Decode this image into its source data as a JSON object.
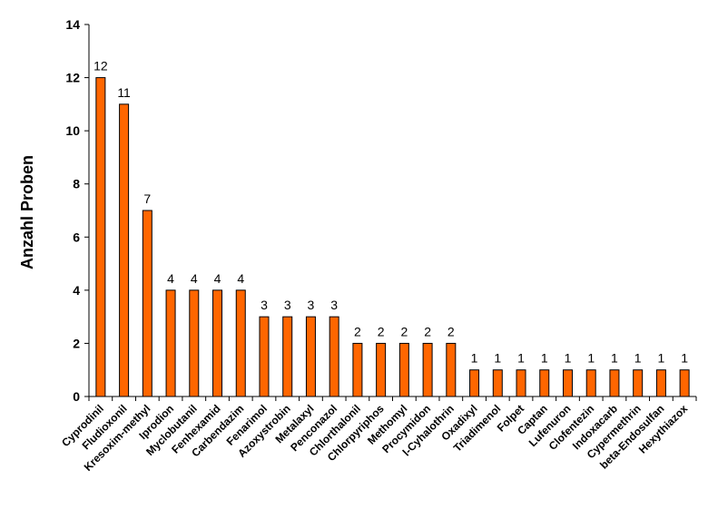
{
  "chart_data": {
    "type": "bar",
    "title": "",
    "xlabel": "",
    "ylabel": "Anzahl Proben",
    "ylim": [
      0,
      14
    ],
    "yticks": [
      0,
      2,
      4,
      6,
      8,
      10,
      12,
      14
    ],
    "grid": false,
    "bar_color": "#ff6600",
    "categories": [
      "Cyprodinil",
      "Fludioxonil",
      "Kresoxim-methyl",
      "Iprodion",
      "Myclobutanil",
      "Fenhexamid",
      "Carbendazim",
      "Fenarimol",
      "Azoxystrobin",
      "Metalaxyl",
      "Penconazol",
      "Chlorthalonil",
      "Chlorpyriphos",
      "Methomyl",
      "Procymidon",
      "l-Cyhalothrin",
      "Oxadixyl",
      "Triadimenol",
      "Folpet",
      "Captan",
      "Lufenuron",
      "Clofentezin",
      "Indoxacarb",
      "Cypermethrin",
      "beta-Endosulfan",
      "Hexythiazox"
    ],
    "values": [
      12,
      11,
      7,
      4,
      4,
      4,
      4,
      3,
      3,
      3,
      3,
      2,
      2,
      2,
      2,
      2,
      1,
      1,
      1,
      1,
      1,
      1,
      1,
      1,
      1,
      1
    ]
  }
}
